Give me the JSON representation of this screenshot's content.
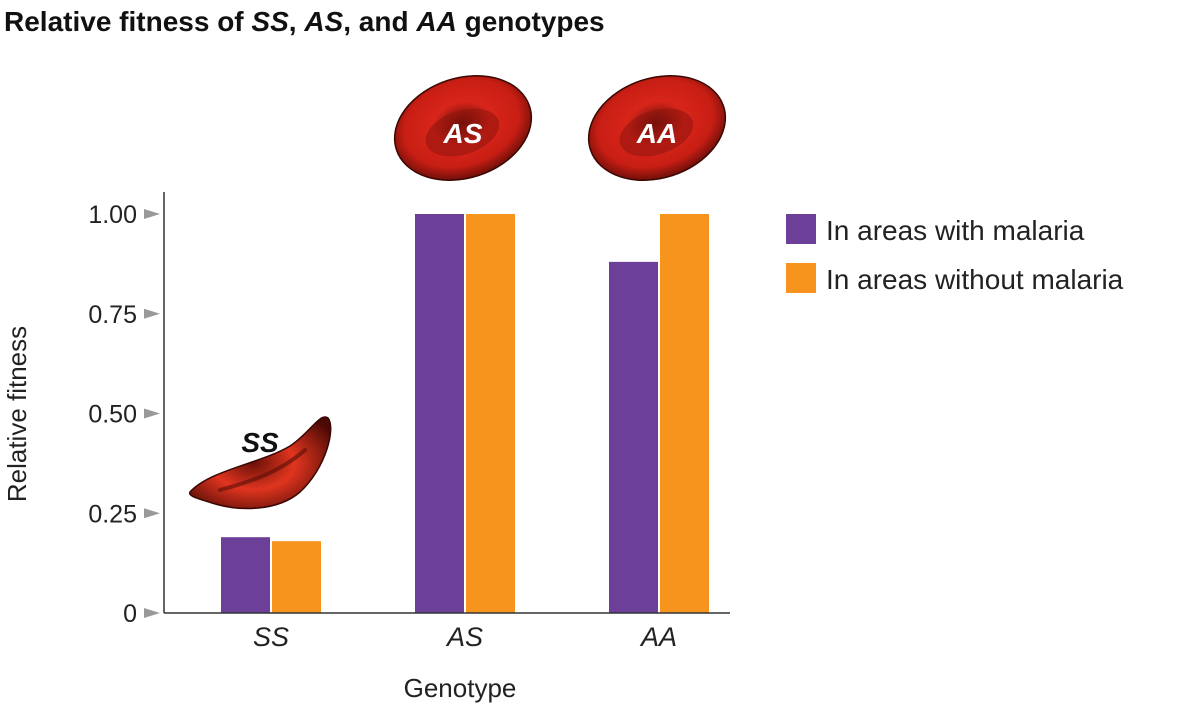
{
  "title_parts": [
    {
      "text": "Relative fitness of ",
      "italic": false
    },
    {
      "text": "SS",
      "italic": true
    },
    {
      "text": ", ",
      "italic": false
    },
    {
      "text": "AS",
      "italic": true
    },
    {
      "text": ", and ",
      "italic": false
    },
    {
      "text": "AA",
      "italic": true
    },
    {
      "text": " genotypes",
      "italic": false
    }
  ],
  "chart_data": {
    "type": "bar",
    "title": "Relative fitness of SS, AS, and AA genotypes",
    "xlabel": "Genotype",
    "ylabel": "Relative fitness",
    "categories": [
      "SS",
      "AS",
      "AA"
    ],
    "ylim": [
      0,
      1.0
    ],
    "yticks": [
      0,
      0.25,
      0.5,
      0.75,
      1.0
    ],
    "ytick_labels": [
      "0",
      "0.25",
      "0.50",
      "0.75",
      "1.00"
    ],
    "grid": false,
    "legend_position": "right",
    "series": [
      {
        "name": "In areas with malaria",
        "color": "#6c3f98",
        "values": [
          0.19,
          1.0,
          0.88
        ]
      },
      {
        "name": "In areas without malaria",
        "color": "#f7941d",
        "values": [
          0.18,
          1.0,
          1.0
        ]
      }
    ],
    "cell_labels": [
      "SS",
      "AS",
      "AA"
    ]
  }
}
